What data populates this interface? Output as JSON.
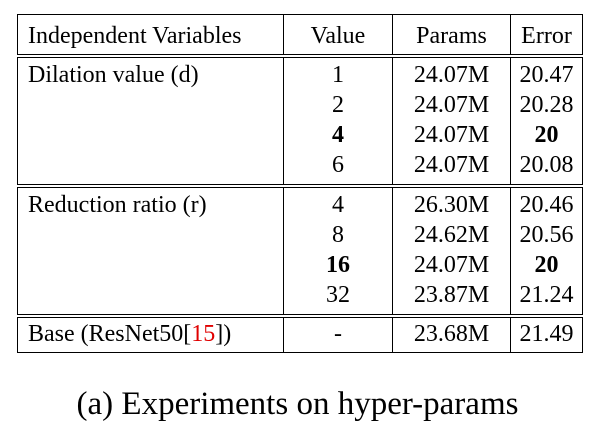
{
  "table": {
    "headers": [
      "Independent Variables",
      "Value",
      "Params",
      "Error"
    ],
    "groups": [
      {
        "label": "Dilation value (d)",
        "rows": [
          {
            "value": "1",
            "params": "24.07M",
            "error": "20.47"
          },
          {
            "value": "2",
            "params": "24.07M",
            "error": "20.28"
          },
          {
            "value": "4",
            "params": "24.07M",
            "error": "20"
          },
          {
            "value": "6",
            "params": "24.07M",
            "error": "20.08"
          }
        ]
      },
      {
        "label": "Reduction ratio (r)",
        "rows": [
          {
            "value": "4",
            "params": "26.30M",
            "error": "20.46"
          },
          {
            "value": "8",
            "params": "24.62M",
            "error": "20.56"
          },
          {
            "value": "16",
            "params": "24.07M",
            "error": "20"
          },
          {
            "value": "32",
            "params": "23.87M",
            "error": "21.24"
          }
        ]
      }
    ],
    "base": {
      "label_prefix": "Base (ResNet50[",
      "citation": "15",
      "label_suffix": "])",
      "value": "-",
      "params": "23.68M",
      "error": "21.49"
    }
  },
  "caption": "(a) Experiments on hyper-params"
}
